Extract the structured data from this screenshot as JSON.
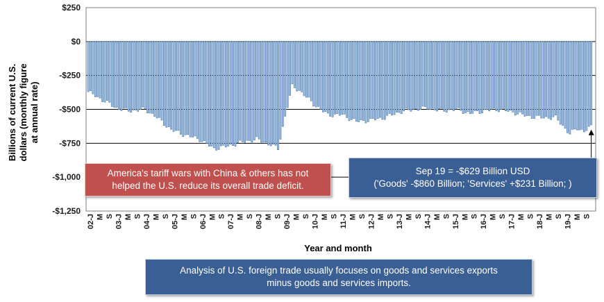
{
  "chart_data": {
    "type": "bar",
    "xlabel": "Year and month",
    "ylabel_lines": [
      "Billions of current U.S.",
      "dollars (monthly figure",
      "at annual rate)"
    ],
    "ylim": [
      -1250,
      250
    ],
    "y_ticks": [
      250,
      0,
      -250,
      -500,
      -750,
      -1000,
      -1250
    ],
    "y_tick_labels": [
      "$250",
      "$0",
      "-$250",
      "-$500",
      "-$750",
      "-$1,000",
      "-$1,250"
    ],
    "x_tick_labels": [
      "02-J",
      "M",
      "S",
      "03-J",
      "M",
      "S",
      "04-J",
      "M",
      "S",
      "05-J",
      "M",
      "S",
      "06-J",
      "M",
      "S",
      "07-J",
      "M",
      "S",
      "08-J",
      "M",
      "S",
      "09-J",
      "M",
      "S",
      "10-J",
      "M",
      "S",
      "11-J",
      "M",
      "S",
      "12-J",
      "M",
      "S",
      "13-J",
      "M",
      "S",
      "14-J",
      "M",
      "S",
      "15-J",
      "M",
      "S",
      "16-J",
      "M",
      "S",
      "17-J",
      "M",
      "S",
      "18-J",
      "M",
      "S",
      "19-J",
      "M",
      "S"
    ],
    "first_month": "Jan 2002",
    "last_month": "Sep 2019",
    "bar_color": "#a8c4e6",
    "bar_edge_color": "#3b6ea5",
    "grid": "horizontal",
    "anchors": [
      {
        "month": "2002-01",
        "value": -370
      },
      {
        "month": "2002-06",
        "value": -420
      },
      {
        "month": "2003-01",
        "value": -490
      },
      {
        "month": "2003-06",
        "value": -510
      },
      {
        "month": "2004-01",
        "value": -500
      },
      {
        "month": "2004-06",
        "value": -560
      },
      {
        "month": "2004-12",
        "value": -650
      },
      {
        "month": "2005-06",
        "value": -690
      },
      {
        "month": "2005-12",
        "value": -720
      },
      {
        "month": "2006-06",
        "value": -790
      },
      {
        "month": "2006-12",
        "value": -770
      },
      {
        "month": "2007-06",
        "value": -740
      },
      {
        "month": "2007-12",
        "value": -720
      },
      {
        "month": "2008-06",
        "value": -760
      },
      {
        "month": "2008-09",
        "value": -790
      },
      {
        "month": "2008-12",
        "value": -550
      },
      {
        "month": "2009-03",
        "value": -330
      },
      {
        "month": "2009-06",
        "value": -360
      },
      {
        "month": "2009-12",
        "value": -460
      },
      {
        "month": "2010-06",
        "value": -540
      },
      {
        "month": "2010-12",
        "value": -540
      },
      {
        "month": "2011-06",
        "value": -590
      },
      {
        "month": "2011-12",
        "value": -580
      },
      {
        "month": "2012-06",
        "value": -560
      },
      {
        "month": "2012-12",
        "value": -520
      },
      {
        "month": "2013-06",
        "value": -500
      },
      {
        "month": "2013-12",
        "value": -490
      },
      {
        "month": "2014-06",
        "value": -510
      },
      {
        "month": "2014-12",
        "value": -500
      },
      {
        "month": "2015-06",
        "value": -530
      },
      {
        "month": "2015-12",
        "value": -510
      },
      {
        "month": "2016-06",
        "value": -500
      },
      {
        "month": "2016-12",
        "value": -520
      },
      {
        "month": "2017-06",
        "value": -550
      },
      {
        "month": "2017-12",
        "value": -560
      },
      {
        "month": "2018-06",
        "value": -560
      },
      {
        "month": "2018-12",
        "value": -680
      },
      {
        "month": "2019-03",
        "value": -640
      },
      {
        "month": "2019-06",
        "value": -660
      },
      {
        "month": "2019-09",
        "value": -629
      }
    ],
    "annotation_arrow_target": {
      "month": "2019-09",
      "value": -629
    }
  },
  "callouts": {
    "red": {
      "lines": [
        "America's tariff wars with China & others has not",
        "helped the U.S. reduce its overall trade deficit."
      ],
      "color": "#c0504d"
    },
    "blue_right": {
      "lines": [
        "Sep 19  = -$629 Billion USD",
        "('Goods' -$860 Billion; 'Services' +$231 Billion; )"
      ],
      "color": "#3a5f94"
    },
    "blue_bottom": {
      "lines": [
        "Analysis of U.S. foreign trade usually focuses on goods and services exports",
        "minus goods and services imports."
      ],
      "color": "#3a5f94"
    }
  }
}
